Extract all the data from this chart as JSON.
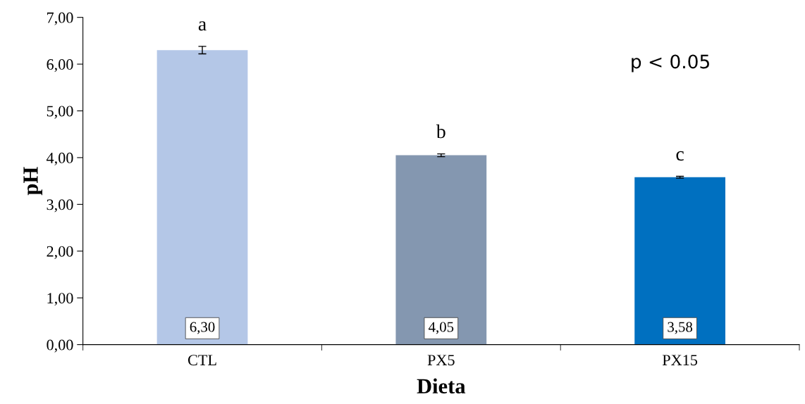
{
  "chart_data": {
    "type": "bar",
    "xlabel": "Dieta",
    "ylabel": "pH",
    "categories": [
      "CTL",
      "PX5",
      "PX15"
    ],
    "values": [
      6.3,
      4.05,
      3.58
    ],
    "colors": [
      "#b4c7e7",
      "#8497b0",
      "#0070c0"
    ],
    "errors": [
      0.08,
      0.03,
      0.02
    ],
    "value_labels": [
      "6,30",
      "4,05",
      "3,58"
    ],
    "ylim": [
      0,
      7
    ],
    "yticks": [
      {
        "value": 0,
        "label": "0,00"
      },
      {
        "value": 1,
        "label": "1,00"
      },
      {
        "value": 2,
        "label": "2,00"
      },
      {
        "value": 3,
        "label": "3,00"
      },
      {
        "value": 4,
        "label": "4,00"
      },
      {
        "value": 5,
        "label": "5,00"
      },
      {
        "value": 6,
        "label": "6,00"
      },
      {
        "value": 7,
        "label": "7,00"
      }
    ],
    "annotations": [
      {
        "text": "a",
        "x": "CTL",
        "y": 6.38
      },
      {
        "text": "b",
        "x": "PX5",
        "y": 4.08
      },
      {
        "text": "c",
        "x": "PX15",
        "y": 3.6
      },
      "p < 0.05"
    ],
    "grid": false,
    "legend": false
  }
}
